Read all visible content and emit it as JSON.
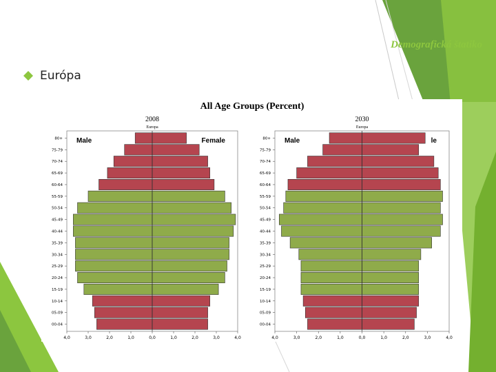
{
  "slide": {
    "title": "Demografická štatiko",
    "bullet": "Európa",
    "accent_color": "#8dc63f",
    "bullet_icon": "diamond-bullet-icon"
  },
  "chart_data": {
    "type": "bar",
    "title": "All Age Groups (Percent)",
    "age_groups": [
      "80+",
      "75-79",
      "70-74",
      "65-69",
      "60-64",
      "55-59",
      "50-54",
      "45-49",
      "40-44",
      "35-39",
      "30-34",
      "25-29",
      "20-24",
      "15-19",
      "10-14",
      "05-09",
      "00-04"
    ],
    "x_ticks": [
      "4,0",
      "3,0",
      "2,0",
      "1,0",
      "0,0",
      "1,0",
      "2,0",
      "3,0",
      "4,0"
    ],
    "xlim": [
      -4,
      4
    ],
    "colors": {
      "older": "#b5454f",
      "working": "#8fab4a",
      "young": "#b5454f"
    },
    "pyramids": [
      {
        "year": "2008",
        "region": "Europa",
        "male_label": "Male",
        "female_label": "Female",
        "male": [
          0.8,
          1.3,
          1.8,
          2.1,
          2.5,
          3.0,
          3.5,
          3.7,
          3.7,
          3.6,
          3.6,
          3.6,
          3.5,
          3.2,
          2.8,
          2.7,
          2.6
        ],
        "female": [
          1.6,
          2.2,
          2.6,
          2.7,
          2.9,
          3.4,
          3.7,
          3.9,
          3.8,
          3.6,
          3.6,
          3.5,
          3.4,
          3.1,
          2.7,
          2.6,
          2.6
        ]
      },
      {
        "year": "2030",
        "region": "Europa",
        "male_label": "Male",
        "female_label": "le",
        "male": [
          1.5,
          1.8,
          2.5,
          3.0,
          3.4,
          3.5,
          3.6,
          3.8,
          3.7,
          3.3,
          2.9,
          2.8,
          2.8,
          2.8,
          2.7,
          2.6,
          2.5
        ],
        "female": [
          2.9,
          2.6,
          3.3,
          3.5,
          3.6,
          3.7,
          3.6,
          3.7,
          3.6,
          3.2,
          2.7,
          2.6,
          2.6,
          2.6,
          2.6,
          2.5,
          2.4
        ]
      }
    ]
  }
}
